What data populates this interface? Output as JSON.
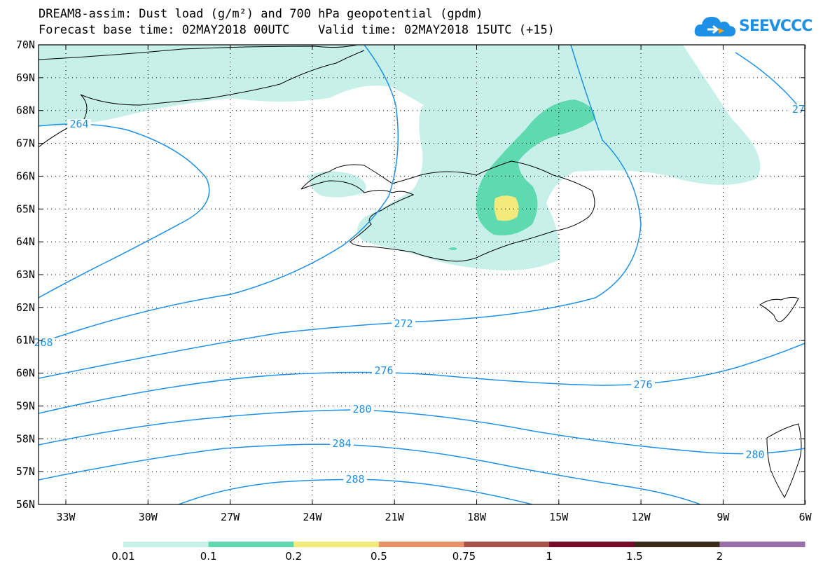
{
  "header": {
    "title_line1": "DREAM8-assim: Dust load (g/m²) and 700 hPa geopotential (gpdm)",
    "title_line2": "Forecast base time: 02MAY2018 00UTC    Valid time: 02MAY2018 15UTC (+15)",
    "logo_text": "SEEVCCC"
  },
  "map": {
    "lat_labels": [
      "70N",
      "69N",
      "68N",
      "67N",
      "66N",
      "65N",
      "64N",
      "63N",
      "62N",
      "61N",
      "60N",
      "59N",
      "58N",
      "57N",
      "56N"
    ],
    "lon_labels": [
      "33W",
      "30W",
      "27W",
      "24W",
      "21W",
      "18W",
      "15W",
      "12W",
      "9W",
      "6W"
    ],
    "contour_labels": [
      "264",
      "268",
      "272",
      "276",
      "276",
      "280",
      "280",
      "284",
      "288",
      "27"
    ],
    "grid": "dotted"
  },
  "legend": {
    "labels": [
      "0.01",
      "0.1",
      "0.2",
      "0.5",
      "0.75",
      "1",
      "1.5",
      "2"
    ],
    "colors": [
      "#c6f0e8",
      "#5ed9b0",
      "#f2ea7a",
      "#e8926a",
      "#a8504a",
      "#7a0a2a",
      "#3a2a1a",
      "#9a6ea8"
    ]
  },
  "colors": {
    "contour": "#1e90e6",
    "logo": "#1e90e6"
  }
}
